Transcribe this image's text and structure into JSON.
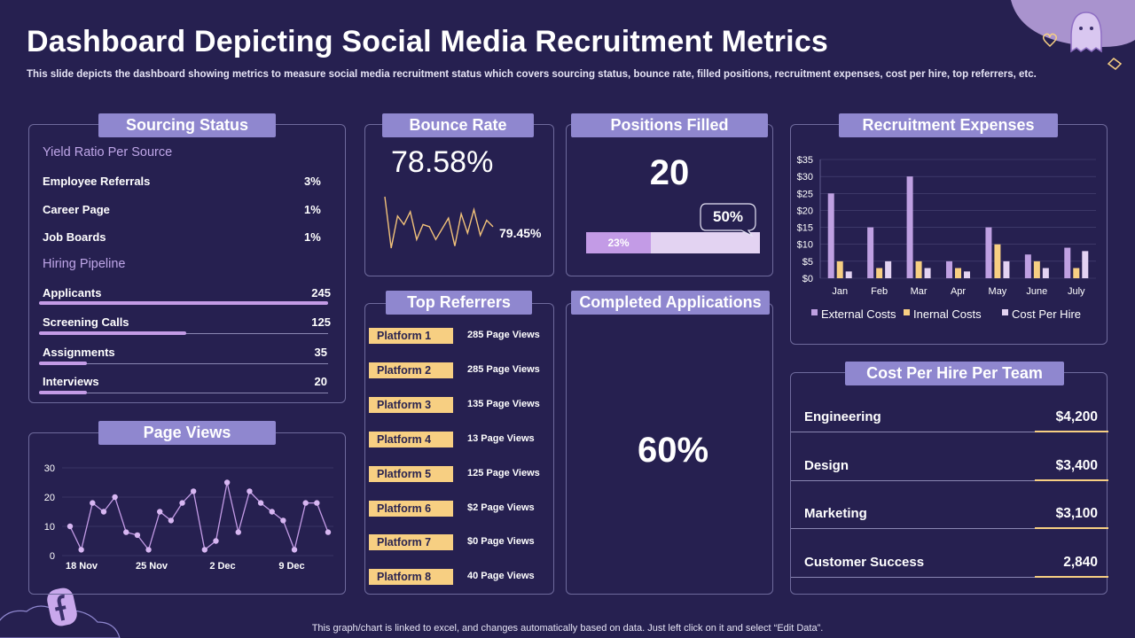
{
  "header": {
    "title": "Dashboard Depicting Social Media Recruitment Metrics",
    "subtitle": "This slide depicts the dashboard showing metrics to measure social media recruitment status which covers sourcing status, bounce rate, filled positions, recruitment expenses, cost per hire, top referrers, etc."
  },
  "footer": {
    "note": "This graph/chart is linked to excel,  and changes automatically based on data. Just left click on it and select “Edit Data”."
  },
  "sourcing": {
    "title": "Sourcing Status",
    "yield_heading": "Yield Ratio Per Source",
    "yield": [
      {
        "label": "Employee Referrals",
        "value": "3%"
      },
      {
        "label": "Career Page",
        "value": "1%"
      },
      {
        "label": "Job Boards",
        "value": "1%"
      }
    ],
    "pipeline_heading": "Hiring Pipeline",
    "pipeline": [
      {
        "label": "Applicants",
        "value": "245",
        "count": 245
      },
      {
        "label": "Screening Calls",
        "value": "125",
        "count": 125
      },
      {
        "label": "Assignments",
        "value": "35",
        "count": 35
      },
      {
        "label": "Interviews",
        "value": "20",
        "count": 20
      }
    ]
  },
  "bounce": {
    "title": "Bounce Rate",
    "value": "78.58%",
    "secondary": "79.45%"
  },
  "positions": {
    "title": "Positions Filled",
    "value": "20",
    "target_label": "50%",
    "progress_label": "23%",
    "progress": 0.23,
    "target": 0.5
  },
  "completed": {
    "title": "Completed Applications",
    "value": "60%"
  },
  "referrers": {
    "title": "Top Referrers",
    "items": [
      {
        "name": "Platform 1",
        "views": "285 Page Views"
      },
      {
        "name": "Platform 2",
        "views": "285 Page Views"
      },
      {
        "name": "Platform 3",
        "views": "135 Page Views"
      },
      {
        "name": "Platform 4",
        "views": "13 Page Views"
      },
      {
        "name": "Platform 5",
        "views": "125 Page Views"
      },
      {
        "name": "Platform 6",
        "views": "$2 Page Views"
      },
      {
        "name": "Platform 7",
        "views": "$0 Page Views"
      },
      {
        "name": "Platform 8",
        "views": "40 Page Views"
      }
    ]
  },
  "expenses": {
    "title": "Recruitment Expenses"
  },
  "page_views": {
    "title": "Page Views"
  },
  "cost_per_team": {
    "title": "Cost Per Hire Per Team",
    "rows": [
      {
        "team": "Engineering",
        "value": "$4,200"
      },
      {
        "team": "Design",
        "value": "$3,400"
      },
      {
        "team": "Marketing",
        "value": "$3,100"
      },
      {
        "team": "Customer Success",
        "value": "2,840"
      }
    ]
  },
  "colors": {
    "background": "#262050",
    "title_bar": "#8f87cf",
    "accent_purple": "#c39be6",
    "accent_yellow": "#f7cf82",
    "light_lavender": "#e3d3f2"
  },
  "icons": [
    "facebook-icon",
    "ghost-icon",
    "heart-icon"
  ],
  "chart_data": [
    {
      "id": "recruitment_expenses",
      "type": "bar",
      "title": "Recruitment Expenses",
      "categories": [
        "Jan",
        "Feb",
        "Mar",
        "Apr",
        "May",
        "June",
        "July"
      ],
      "series": [
        {
          "name": "External Costs",
          "color": "#bfa0e2",
          "values": [
            25,
            15,
            30,
            5,
            15,
            7,
            9
          ]
        },
        {
          "name": "Inernal Costs",
          "color": "#f7cf82",
          "values": [
            5,
            3,
            5,
            3,
            10,
            5,
            3
          ]
        },
        {
          "name": "Cost Per Hire",
          "color": "#e3d3f2",
          "values": [
            2,
            5,
            3,
            2,
            5,
            3,
            8
          ]
        }
      ],
      "ylim": [
        0,
        35
      ],
      "yticks": [
        "$0",
        "$5",
        "$10",
        "$15",
        "$20",
        "$25",
        "$30",
        "$35"
      ],
      "legend": "bottom"
    },
    {
      "id": "page_views",
      "type": "line",
      "title": "Page Views",
      "x_tick_labels": [
        "18 Nov",
        "25 Nov",
        "2 Dec",
        "9 Dec"
      ],
      "values": [
        10,
        2,
        18,
        15,
        20,
        8,
        7,
        2,
        15,
        12,
        18,
        22,
        2,
        5,
        25,
        8,
        22,
        18,
        15,
        12,
        2,
        18,
        18,
        8
      ],
      "ylim": [
        0,
        30
      ],
      "yticks": [
        "0",
        "10",
        "20",
        "30"
      ]
    },
    {
      "id": "bounce_sparkline",
      "type": "line",
      "title": "Bounce Rate",
      "values": [
        78.9,
        76.5,
        78.0,
        77.6,
        78.2,
        76.9,
        77.6,
        77.5,
        76.9,
        77.4,
        77.9,
        76.6,
        78.1,
        77.2,
        78.3,
        77.1,
        77.8,
        77.5
      ]
    }
  ]
}
